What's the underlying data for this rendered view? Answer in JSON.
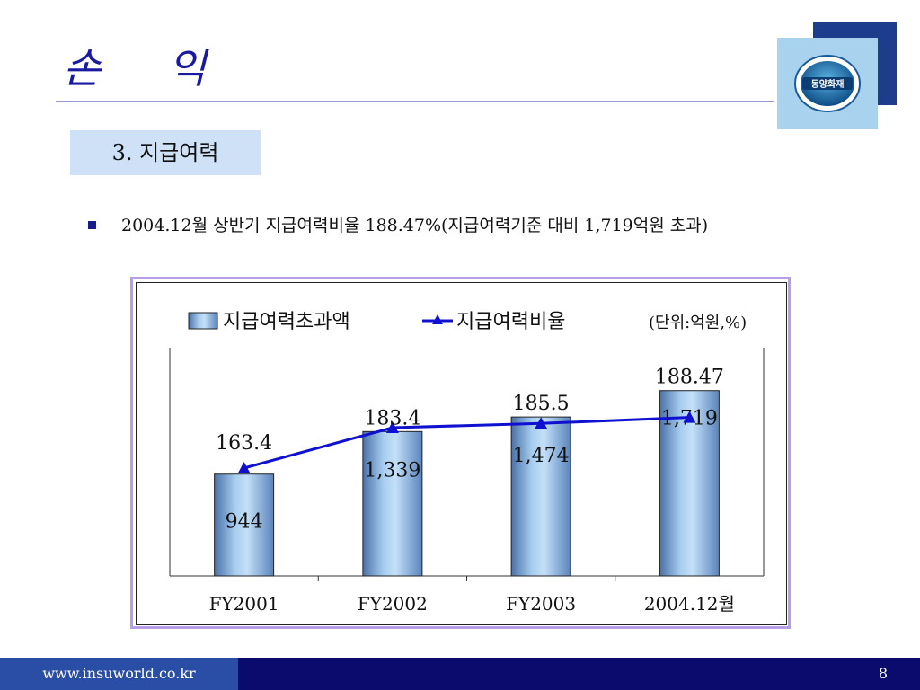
{
  "header": {
    "title": "손 익",
    "logo_text": "동양화재"
  },
  "section": {
    "tab_label": "3. 지급여력"
  },
  "bullet": {
    "text": "2004.12월 상반기 지급여력비율 188.47%(지급여력기준 대비 1,719억원 초과)"
  },
  "chart_data": {
    "type": "bar",
    "categories": [
      "FY2001",
      "FY2002",
      "FY2003",
      "2004.12월"
    ],
    "series": [
      {
        "name": "지급여력초과액",
        "type": "bar",
        "values": [
          944,
          1339,
          1474,
          1719
        ],
        "labels": [
          "944",
          "1,339",
          "1,474",
          "1,719"
        ]
      },
      {
        "name": "지급여력비율",
        "type": "line",
        "values": [
          163.4,
          183.4,
          185.5,
          188.47
        ],
        "labels": [
          "163.4",
          "183.4",
          "185.5",
          "188.47"
        ]
      }
    ],
    "unit_note": "(단위:억원,%)",
    "legend_position": "top",
    "grid": false,
    "colors": {
      "bar": "#8fb4dc",
      "line": "#1010d0"
    }
  },
  "footer": {
    "url": "www.insuworld.co.kr",
    "page_number": "8"
  }
}
